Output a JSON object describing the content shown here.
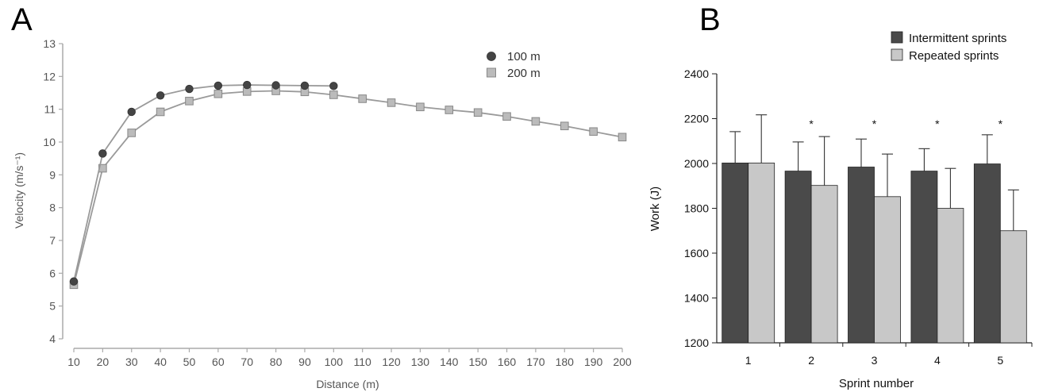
{
  "chart_data": [
    {
      "panel_label": "A",
      "type": "line",
      "xlabel": "Distance (m)",
      "ylabel": "Velocity (m/s⁻¹)",
      "xlim": [
        10,
        200
      ],
      "ylim": [
        4,
        13
      ],
      "x_ticks": [
        "10",
        "20",
        "30",
        "40",
        "50",
        "60",
        "70",
        "80",
        "90",
        "100",
        "110",
        "120",
        "130",
        "140",
        "150",
        "160",
        "170",
        "180",
        "190",
        "200"
      ],
      "y_ticks": [
        "4",
        "5",
        "6",
        "7",
        "8",
        "9",
        "10",
        "11",
        "12",
        "13"
      ],
      "grid": false,
      "legend_position": "top-right",
      "series": [
        {
          "name": "100 m",
          "marker": "circle",
          "color": "#444444",
          "x": [
            10,
            20,
            30,
            40,
            50,
            60,
            70,
            80,
            90,
            100
          ],
          "y": [
            5.75,
            9.65,
            10.92,
            11.42,
            11.62,
            11.72,
            11.74,
            11.73,
            11.72,
            11.71
          ]
        },
        {
          "name": "200 m",
          "marker": "square",
          "color": "#bbbbbb",
          "x": [
            10,
            20,
            30,
            40,
            50,
            60,
            70,
            80,
            90,
            100,
            110,
            120,
            130,
            140,
            150,
            160,
            170,
            180,
            190,
            200
          ],
          "y": [
            5.65,
            9.2,
            10.28,
            10.92,
            11.25,
            11.47,
            11.54,
            11.56,
            11.53,
            11.44,
            11.32,
            11.2,
            11.07,
            10.98,
            10.9,
            10.78,
            10.63,
            10.49,
            10.32,
            10.15
          ]
        }
      ]
    },
    {
      "panel_label": "B",
      "type": "bar",
      "xlabel": "Sprint number",
      "ylabel": "Work (J)",
      "categories": [
        "1",
        "2",
        "3",
        "4",
        "5"
      ],
      "ylim": [
        1200,
        2400
      ],
      "y_ticks": [
        "1200",
        "1400",
        "1600",
        "1800",
        "2000",
        "2200",
        "2400"
      ],
      "grid": false,
      "legend_position": "top-right",
      "significance_marker": "*",
      "significant": [
        false,
        true,
        true,
        true,
        true
      ],
      "series": [
        {
          "name": "Intermittent sprints",
          "color": "#4a4a4a",
          "values": [
            2002,
            1966,
            1984,
            1966,
            1998
          ],
          "error": [
            140,
            130,
            125,
            100,
            130
          ]
        },
        {
          "name": "Repeated sprints",
          "color": "#c8c8c8",
          "values": [
            2002,
            1902,
            1852,
            1800,
            1700
          ],
          "error": [
            215,
            218,
            190,
            178,
            182
          ]
        }
      ]
    }
  ]
}
